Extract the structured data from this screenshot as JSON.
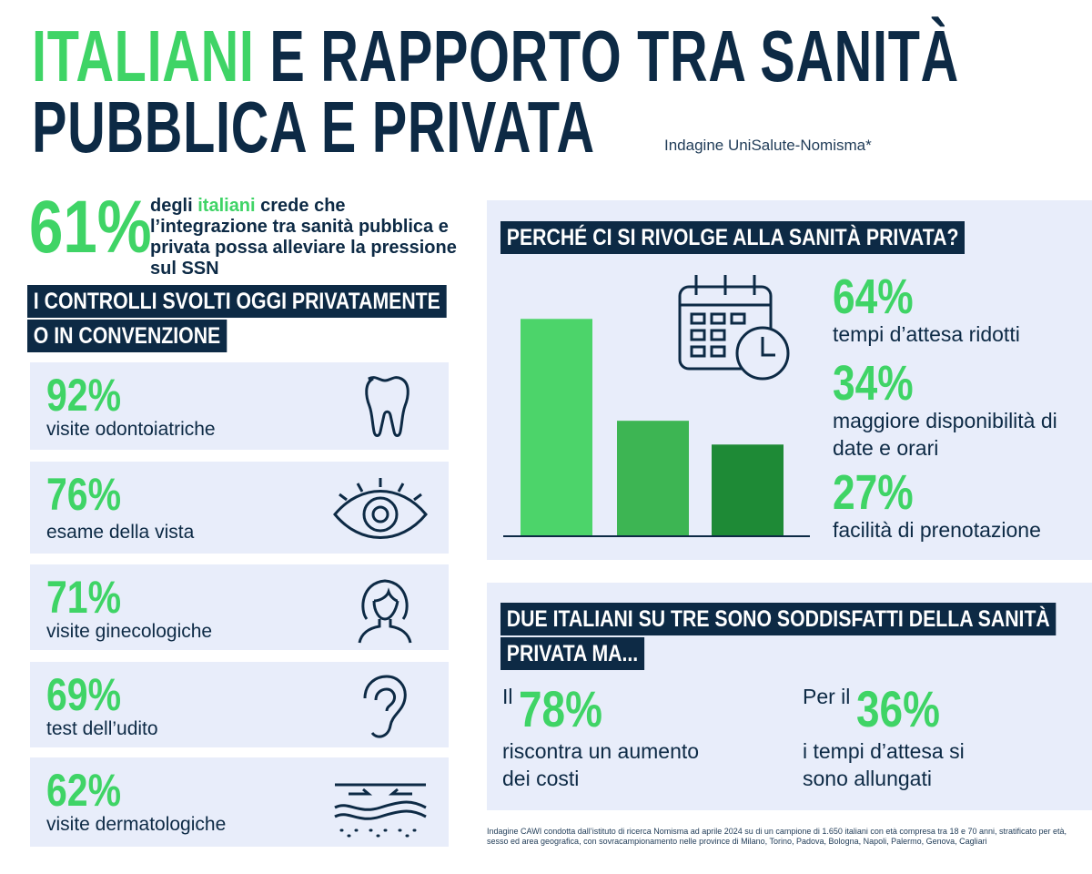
{
  "header": {
    "title_highlight": "ITALIANI",
    "title_rest": " E RAPPORTO TRA SANITÀ",
    "title_line2": "PUBBLICA E PRIVATA",
    "subtitle": "Indagine UniSalute-Nomisma*"
  },
  "intro": {
    "value": "61%",
    "text_before": "degli ",
    "text_highlight": "italiani",
    "text_after": " crede che l’integrazione tra sanità pubblica e privata possa alleviare la pressione sul SSN"
  },
  "checks": {
    "heading": [
      "I CONTROLLI SVOLTI OGGI PRIVATAMENTE",
      "O IN CONVENZIONE"
    ],
    "items": [
      {
        "value": "92%",
        "label": "visite odontoiatriche"
      },
      {
        "value": "76%",
        "label": "esame della vista"
      },
      {
        "value": "71%",
        "label": "visite ginecologiche"
      },
      {
        "value": "69%",
        "label": "test dell’udito"
      },
      {
        "value": "62%",
        "label": "visite dermatologiche"
      }
    ]
  },
  "reasons": {
    "heading": "PERCHÉ CI SI RIVOLGE ALLA SANITÀ PRIVATA?",
    "items": [
      {
        "value": 64,
        "value_label": "64%",
        "label": "tempi d’attesa ridotti",
        "color": "#4cd46a"
      },
      {
        "value": 34,
        "value_label": "34%",
        "label": "maggiore disponibilità di date e orari",
        "color": "#3db553"
      },
      {
        "value": 27,
        "value_label": "27%",
        "label": "facilità di prenotazione",
        "color": "#1e8a36"
      }
    ]
  },
  "satisfaction": {
    "heading": [
      "DUE ITALIANI SU TRE SONO SODDISFATTI DELLA SANITÀ",
      "PRIVATA MA..."
    ],
    "stats": [
      {
        "prefix": "Il",
        "value": "78%",
        "text": "riscontra un aumento dei costi"
      },
      {
        "prefix": "Per il",
        "value": "36%",
        "text": "i tempi d’attesa si sono allungati"
      }
    ]
  },
  "footnote": "Indagine CAWI condotta dall’istituto di ricerca Nomisma ad aprile 2024 su di un campione di 1.650 italiani con età compresa tra 18 e 70 anni, stratificato per età, sesso ed area geografica, con sovracampionamento nelle province di Milano, Torino, Padova, Bologna, Napoli, Palermo, Genova, Cagliari"
}
